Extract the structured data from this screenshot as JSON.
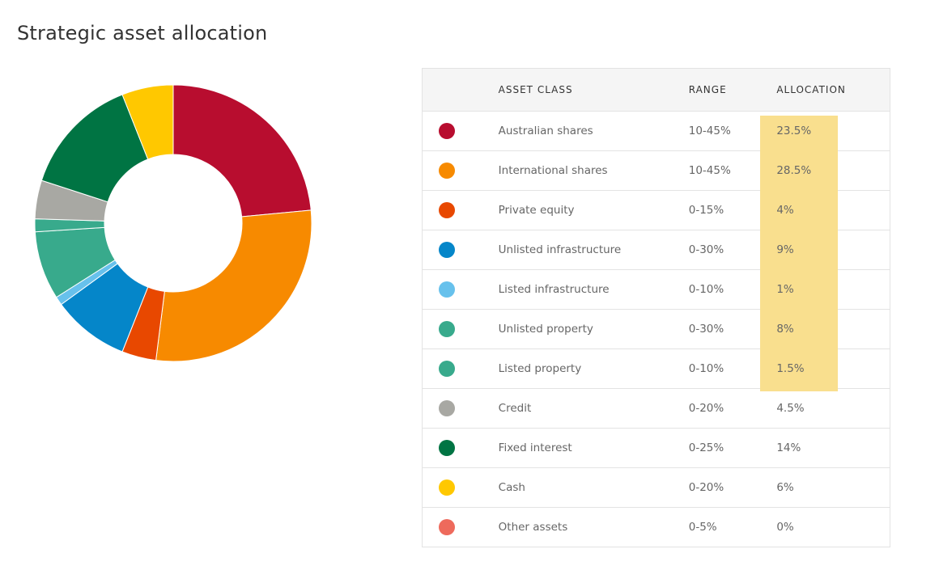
{
  "page": {
    "title": "Strategic asset allocation"
  },
  "table": {
    "headers": {
      "asset_class": "ASSET CLASS",
      "range": "RANGE",
      "allocation": "ALLOCATION"
    },
    "rows": [
      {
        "asset_class": "Australian shares",
        "range": "10-45%",
        "allocation": "23.5%",
        "color": "#b80d2f",
        "highlighted": true
      },
      {
        "asset_class": "International shares",
        "range": "10-45%",
        "allocation": "28.5%",
        "color": "#f78a00",
        "highlighted": true
      },
      {
        "asset_class": "Private equity",
        "range": "0-15%",
        "allocation": "4%",
        "color": "#e84800",
        "highlighted": true
      },
      {
        "asset_class": "Unlisted infrastructure",
        "range": "0-30%",
        "allocation": "9%",
        "color": "#0586c9",
        "highlighted": true
      },
      {
        "asset_class": "Listed infrastructure",
        "range": "0-10%",
        "allocation": "1%",
        "color": "#67c1ec",
        "highlighted": true
      },
      {
        "asset_class": "Unlisted property",
        "range": "0-30%",
        "allocation": "8%",
        "color": "#38aa8c",
        "highlighted": true
      },
      {
        "asset_class": "Listed property",
        "range": "0-10%",
        "allocation": "1.5%",
        "color": "#38aa8c",
        "highlighted": true
      },
      {
        "asset_class": "Credit",
        "range": "0-20%",
        "allocation": "4.5%",
        "color": "#a8a8a3",
        "highlighted": false
      },
      {
        "asset_class": "Fixed interest",
        "range": "0-25%",
        "allocation": "14%",
        "color": "#007443",
        "highlighted": false
      },
      {
        "asset_class": "Cash",
        "range": "0-20%",
        "allocation": "6%",
        "color": "#ffc800",
        "highlighted": false
      },
      {
        "asset_class": "Other assets",
        "range": "0-5%",
        "allocation": "0%",
        "color": "#ee6a5c",
        "highlighted": false
      }
    ]
  },
  "chart_data": {
    "type": "pie",
    "donut": true,
    "legend": "table-right",
    "slices": [
      {
        "label": "Australian shares",
        "value": 23.5,
        "color": "#b80d2f"
      },
      {
        "label": "International shares",
        "value": 28.5,
        "color": "#f78a00"
      },
      {
        "label": "Private equity",
        "value": 4,
        "color": "#e84800"
      },
      {
        "label": "Unlisted infrastructure",
        "value": 9,
        "color": "#0586c9"
      },
      {
        "label": "Listed infrastructure",
        "value": 1,
        "color": "#67c1ec"
      },
      {
        "label": "Unlisted property",
        "value": 8,
        "color": "#38aa8c"
      },
      {
        "label": "Listed property",
        "value": 1.5,
        "color": "#38aa8c"
      },
      {
        "label": "Credit",
        "value": 4.5,
        "color": "#a8a8a3"
      },
      {
        "label": "Fixed interest",
        "value": 14,
        "color": "#007443"
      },
      {
        "label": "Cash",
        "value": 6,
        "color": "#ffc800"
      },
      {
        "label": "Other assets",
        "value": 0,
        "color": "#ee6a5c"
      }
    ]
  }
}
